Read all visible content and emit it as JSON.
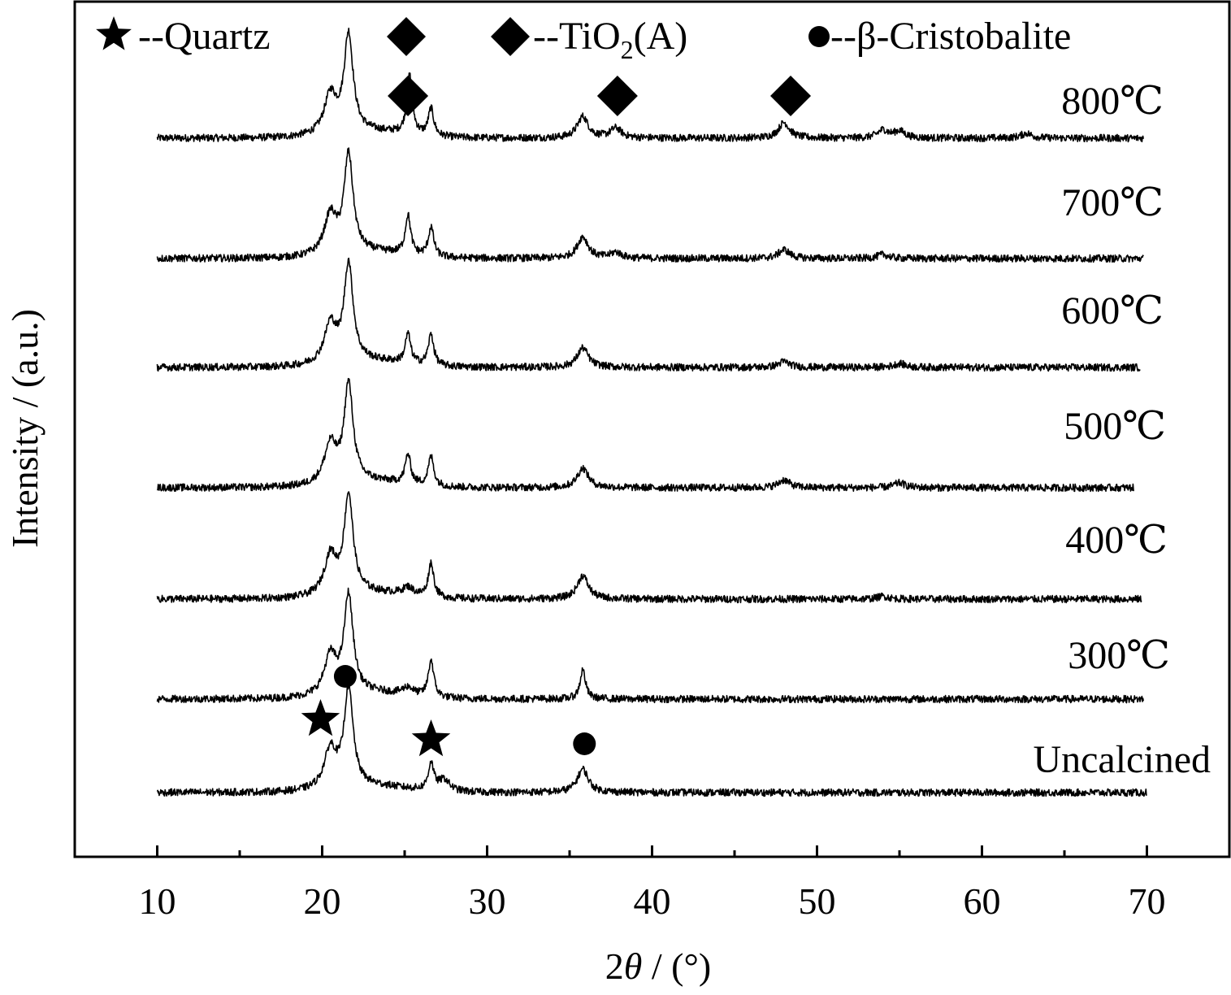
{
  "chart_data": {
    "type": "line",
    "title": "",
    "xlabel_prefix": "2",
    "xlabel_symbol": "θ",
    "xlabel_suffix": " / (°)",
    "ylabel": "Intensity / (a.u.)",
    "xlim": [
      5,
      75
    ],
    "x_ticks_major": [
      10,
      20,
      30,
      40,
      50,
      60,
      70
    ],
    "x_ticks_minor": [
      15,
      25,
      35,
      45,
      55,
      65
    ],
    "y_ticks": "none",
    "grid": false,
    "legend_position": "top",
    "legend": {
      "quartz": {
        "marker": "star",
        "label": "--Quartz"
      },
      "tio2": {
        "marker": "diamond",
        "label_prefix": "--TiO",
        "label_sub": "2",
        "label_suffix": "(A)"
      },
      "cristobalite": {
        "marker": "circle",
        "label": "--β-Cristobalite"
      }
    },
    "colors": {
      "line": "#000000",
      "background": "#ffffff"
    },
    "x_range_scanned": [
      10,
      70
    ],
    "series": [
      {
        "name": "800℃",
        "peaks": [
          [
            20.5,
            0.4
          ],
          [
            21.6,
            1.0
          ],
          [
            25.3,
            0.6
          ],
          [
            26.6,
            0.28
          ],
          [
            35.8,
            0.22
          ],
          [
            37.8,
            0.1
          ],
          [
            48.0,
            0.16
          ],
          [
            54.0,
            0.08
          ],
          [
            55.0,
            0.07
          ],
          [
            62.7,
            0.05
          ]
        ]
      },
      {
        "name": "700℃",
        "peaks": [
          [
            20.5,
            0.4
          ],
          [
            21.6,
            1.0
          ],
          [
            25.2,
            0.4
          ],
          [
            26.6,
            0.3
          ],
          [
            35.8,
            0.22
          ],
          [
            37.8,
            0.06
          ],
          [
            48.0,
            0.09
          ],
          [
            54.0,
            0.04
          ]
        ]
      },
      {
        "name": "600℃",
        "peaks": [
          [
            20.5,
            0.4
          ],
          [
            21.6,
            1.0
          ],
          [
            25.2,
            0.3
          ],
          [
            26.6,
            0.32
          ],
          [
            35.8,
            0.2
          ],
          [
            48.0,
            0.06
          ],
          [
            55.0,
            0.04
          ]
        ]
      },
      {
        "name": "500℃",
        "peaks": [
          [
            20.5,
            0.4
          ],
          [
            21.6,
            1.0
          ],
          [
            25.2,
            0.3
          ],
          [
            26.6,
            0.3
          ],
          [
            35.8,
            0.2
          ],
          [
            48.0,
            0.08
          ],
          [
            55.0,
            0.05
          ]
        ]
      },
      {
        "name": "400℃",
        "peaks": [
          [
            20.5,
            0.4
          ],
          [
            21.6,
            1.0
          ],
          [
            25.2,
            0.08
          ],
          [
            26.6,
            0.35
          ],
          [
            35.8,
            0.24
          ],
          [
            54.0,
            0.03
          ]
        ]
      },
      {
        "name": "300℃",
        "peaks": [
          [
            20.5,
            0.4
          ],
          [
            21.6,
            1.0
          ],
          [
            25.2,
            0.08
          ],
          [
            26.6,
            0.38
          ],
          [
            35.8,
            0.3
          ]
        ]
      },
      {
        "name": "Uncalcined",
        "peaks": [
          [
            20.5,
            0.4
          ],
          [
            21.6,
            1.0
          ],
          [
            26.6,
            0.28
          ],
          [
            27.4,
            0.12
          ],
          [
            35.8,
            0.24
          ]
        ]
      }
    ],
    "annotations": [
      {
        "marker": "diamond",
        "series": "800℃",
        "x": 25.2
      },
      {
        "marker": "diamond",
        "series": "800℃",
        "x": 37.9
      },
      {
        "marker": "diamond",
        "series": "800℃",
        "x": 48.4
      },
      {
        "marker": "circle",
        "series": "300℃",
        "x": 21.4
      },
      {
        "marker": "star",
        "series": "Uncalcined",
        "x": 19.9
      },
      {
        "marker": "star",
        "series": "Uncalcined",
        "x": 26.6
      },
      {
        "marker": "circle",
        "series": "Uncalcined",
        "x": 35.9
      }
    ]
  }
}
